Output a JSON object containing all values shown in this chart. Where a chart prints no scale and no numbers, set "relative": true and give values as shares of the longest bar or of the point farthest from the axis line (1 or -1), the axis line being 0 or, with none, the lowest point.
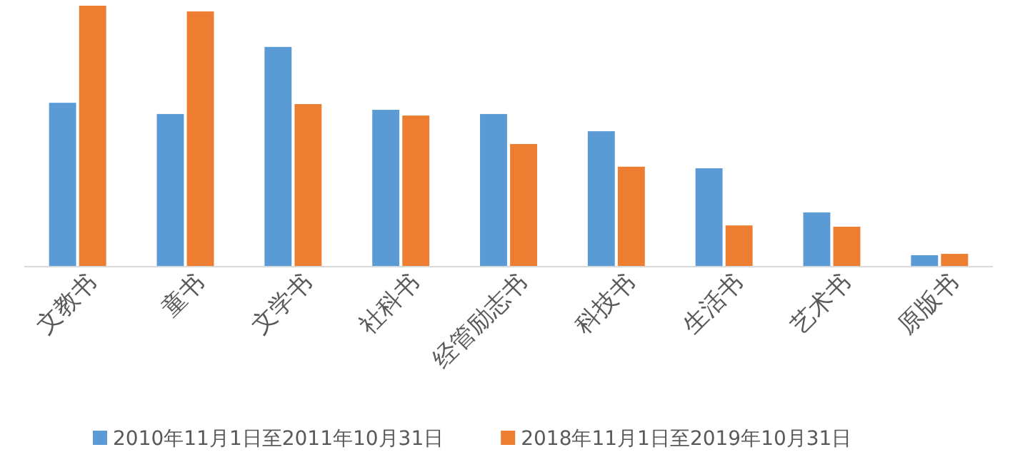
{
  "chart_data": {
    "type": "bar",
    "relative": true,
    "categories": [
      "文教书",
      "童书",
      "文学书",
      "社科书",
      "经管励志书",
      "科技书",
      "生活书",
      "艺术书",
      "原版书"
    ],
    "series": [
      {
        "name": "2010年11月1日至2011年10月31日",
        "color": "#5b9bd5",
        "values": [
          0.628,
          0.585,
          0.842,
          0.601,
          0.585,
          0.519,
          0.377,
          0.208,
          0.044
        ]
      },
      {
        "name": "2018年11月1日至2019年10月31日",
        "color": "#ed7d31",
        "values": [
          1,
          0.978,
          0.623,
          0.579,
          0.47,
          0.383,
          0.158,
          0.153,
          0.049
        ]
      }
    ],
    "legend": "bottom"
  }
}
